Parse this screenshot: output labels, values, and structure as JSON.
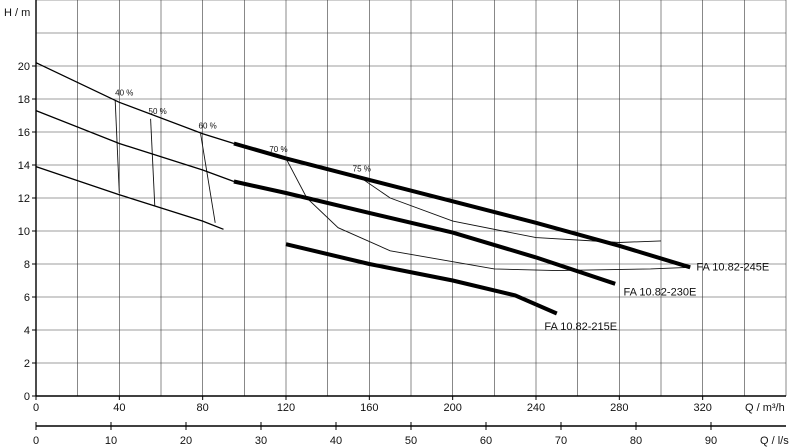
{
  "chart_data": {
    "type": "line",
    "ylabel": "H / m",
    "xlabel": "Q / m³/h",
    "x2label": "Q / l/s",
    "xlim": [
      0,
      360
    ],
    "ylim": [
      0,
      24
    ],
    "x_ticks": [
      0,
      40,
      80,
      120,
      160,
      200,
      240,
      280,
      320
    ],
    "x2_ticks": [
      0,
      10,
      20,
      30,
      40,
      50,
      60,
      70,
      80,
      90
    ],
    "y_ticks": [
      0,
      2,
      4,
      6,
      8,
      10,
      12,
      14,
      16,
      18,
      20
    ],
    "grid": true,
    "series": [
      {
        "name": "FA 10.82-245E",
        "points": [
          [
            0,
            20.2
          ],
          [
            40,
            17.8
          ],
          [
            80,
            15.9
          ],
          [
            95,
            15.3
          ],
          [
            120,
            14.4
          ],
          [
            160,
            13.1
          ],
          [
            200,
            11.8
          ],
          [
            240,
            10.5
          ],
          [
            280,
            9.1
          ],
          [
            314,
            7.8
          ]
        ],
        "bold_from": 95
      },
      {
        "name": "FA 10.82-230E",
        "points": [
          [
            0,
            17.3
          ],
          [
            40,
            15.3
          ],
          [
            80,
            13.7
          ],
          [
            95,
            13.0
          ],
          [
            120,
            12.3
          ],
          [
            160,
            11.1
          ],
          [
            200,
            9.9
          ],
          [
            240,
            8.4
          ],
          [
            278,
            6.8
          ]
        ],
        "bold_from": 95
      },
      {
        "name": "FA 10.82-215E",
        "points": [
          [
            0,
            13.9
          ],
          [
            40,
            12.2
          ],
          [
            80,
            10.6
          ],
          [
            90,
            10.1
          ],
          [
            120,
            9.2
          ],
          [
            160,
            8.0
          ],
          [
            200,
            7.0
          ],
          [
            230,
            6.1
          ],
          [
            250,
            5.0
          ]
        ],
        "bold_from": 93
      }
    ],
    "efficiency_labels": [
      "40 %",
      "50 %",
      "60 %",
      "70 %",
      "75 %"
    ],
    "efficiency_lines": [
      {
        "label": "40 %",
        "points": [
          [
            38,
            17.9
          ],
          [
            40,
            12.3
          ]
        ]
      },
      {
        "label": "50 %",
        "points": [
          [
            55,
            16.8
          ],
          [
            57,
            11.5
          ]
        ]
      },
      {
        "label": "60 %",
        "points": [
          [
            79,
            15.9
          ],
          [
            86,
            10.5
          ]
        ]
      },
      {
        "label": "70 %",
        "points": [
          [
            120,
            14.4
          ],
          [
            130,
            12.0
          ],
          [
            145,
            10.2
          ],
          [
            170,
            8.8
          ],
          [
            220,
            7.7
          ],
          [
            250,
            7.6
          ],
          [
            295,
            7.7
          ],
          [
            314,
            7.8
          ]
        ]
      },
      {
        "label": "75 %",
        "points": [
          [
            155,
            13.3
          ],
          [
            170,
            12.0
          ],
          [
            200,
            10.6
          ],
          [
            240,
            9.6
          ],
          [
            280,
            9.3
          ],
          [
            300,
            9.4
          ]
        ]
      }
    ]
  }
}
